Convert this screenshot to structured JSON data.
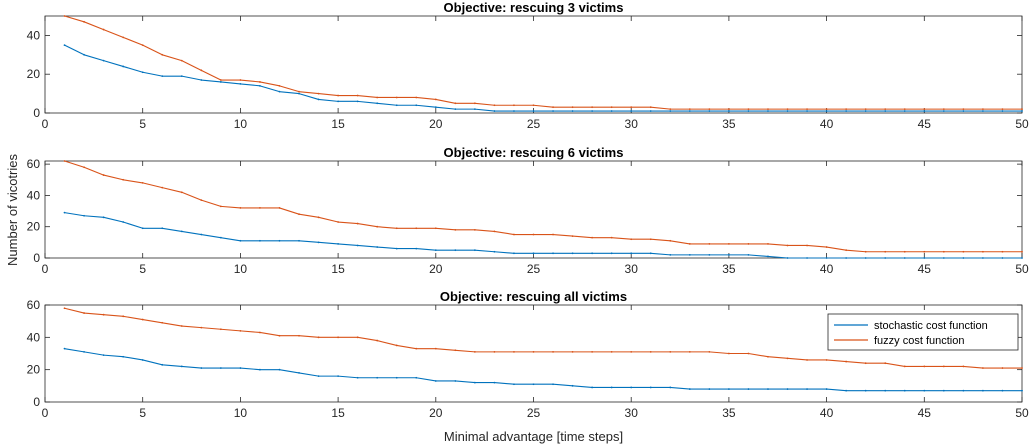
{
  "colors": {
    "stochastic": "#0072BD",
    "fuzzy": "#D95319",
    "axis": "#262626",
    "background": "#ffffff"
  },
  "figure": {
    "ylabel": "Number of vicotries",
    "xlabel": "Minimal advantage [time steps]"
  },
  "chart_data": [
    {
      "type": "line",
      "title": "Objective: rescuing 3 victims",
      "xlim": [
        0,
        50
      ],
      "ylim": [
        0,
        50
      ],
      "xticks": [
        0,
        5,
        10,
        15,
        20,
        25,
        30,
        35,
        40,
        45,
        50
      ],
      "yticks": [
        0,
        20,
        40
      ],
      "grid": false,
      "x": [
        1,
        2,
        3,
        4,
        5,
        6,
        7,
        8,
        9,
        10,
        11,
        12,
        13,
        14,
        15,
        16,
        17,
        18,
        19,
        20,
        21,
        22,
        23,
        24,
        25,
        26,
        27,
        28,
        29,
        30,
        31,
        32,
        33,
        34,
        35,
        36,
        37,
        38,
        39,
        40,
        41,
        42,
        43,
        44,
        45,
        46,
        47,
        48,
        49,
        50
      ],
      "series": [
        {
          "name": "stochastic cost function",
          "color_key": "stochastic",
          "values": [
            35,
            30,
            27,
            24,
            21,
            19,
            19,
            17,
            16,
            15,
            14,
            11,
            10,
            7,
            6,
            6,
            5,
            4,
            4,
            3,
            2,
            2,
            1,
            1,
            1,
            1,
            1,
            1,
            1,
            1,
            1,
            1,
            1,
            1,
            1,
            1,
            1,
            1,
            1,
            1,
            1,
            1,
            1,
            1,
            1,
            1,
            1,
            1,
            1,
            1
          ]
        },
        {
          "name": "fuzzy cost function",
          "color_key": "fuzzy",
          "values": [
            50,
            47,
            43,
            39,
            35,
            30,
            27,
            22,
            17,
            17,
            16,
            14,
            11,
            10,
            9,
            9,
            8,
            8,
            8,
            7,
            5,
            5,
            4,
            4,
            4,
            3,
            3,
            3,
            3,
            3,
            3,
            2,
            2,
            2,
            2,
            2,
            2,
            2,
            2,
            2,
            2,
            2,
            2,
            2,
            2,
            2,
            2,
            2,
            2,
            2
          ]
        }
      ]
    },
    {
      "type": "line",
      "title": "Objective: rescuing 6 victims",
      "xlim": [
        0,
        50
      ],
      "ylim": [
        0,
        62
      ],
      "xticks": [
        0,
        5,
        10,
        15,
        20,
        25,
        30,
        35,
        40,
        45,
        50
      ],
      "yticks": [
        0,
        20,
        40,
        60
      ],
      "grid": false,
      "x": [
        1,
        2,
        3,
        4,
        5,
        6,
        7,
        8,
        9,
        10,
        11,
        12,
        13,
        14,
        15,
        16,
        17,
        18,
        19,
        20,
        21,
        22,
        23,
        24,
        25,
        26,
        27,
        28,
        29,
        30,
        31,
        32,
        33,
        34,
        35,
        36,
        37,
        38,
        39,
        40,
        41,
        42,
        43,
        44,
        45,
        46,
        47,
        48,
        49,
        50
      ],
      "series": [
        {
          "name": "stochastic cost function",
          "color_key": "stochastic",
          "values": [
            29,
            27,
            26,
            23,
            19,
            19,
            17,
            15,
            13,
            11,
            11,
            11,
            11,
            10,
            9,
            8,
            7,
            6,
            6,
            5,
            5,
            5,
            4,
            3,
            3,
            3,
            3,
            3,
            3,
            3,
            3,
            2,
            2,
            2,
            2,
            2,
            1,
            0,
            0,
            0,
            0,
            0,
            0,
            0,
            0,
            0,
            0,
            0,
            0,
            0
          ]
        },
        {
          "name": "fuzzy cost function",
          "color_key": "fuzzy",
          "values": [
            62,
            58,
            53,
            50,
            48,
            45,
            42,
            37,
            33,
            32,
            32,
            32,
            28,
            26,
            23,
            22,
            20,
            19,
            19,
            19,
            18,
            18,
            17,
            15,
            15,
            15,
            14,
            13,
            13,
            12,
            12,
            11,
            9,
            9,
            9,
            9,
            9,
            8,
            8,
            7,
            5,
            4,
            4,
            4,
            4,
            4,
            4,
            4,
            4,
            4
          ]
        }
      ]
    },
    {
      "type": "line",
      "title": "Objective: rescuing all victims",
      "xlim": [
        0,
        50
      ],
      "ylim": [
        0,
        60
      ],
      "xticks": [
        0,
        5,
        10,
        15,
        20,
        25,
        30,
        35,
        40,
        45,
        50
      ],
      "yticks": [
        0,
        20,
        40,
        60
      ],
      "grid": false,
      "legend": "top-right",
      "x": [
        1,
        2,
        3,
        4,
        5,
        6,
        7,
        8,
        9,
        10,
        11,
        12,
        13,
        14,
        15,
        16,
        17,
        18,
        19,
        20,
        21,
        22,
        23,
        24,
        25,
        26,
        27,
        28,
        29,
        30,
        31,
        32,
        33,
        34,
        35,
        36,
        37,
        38,
        39,
        40,
        41,
        42,
        43,
        44,
        45,
        46,
        47,
        48,
        49,
        50
      ],
      "series": [
        {
          "name": "stochastic cost function",
          "color_key": "stochastic",
          "values": [
            33,
            31,
            29,
            28,
            26,
            23,
            22,
            21,
            21,
            21,
            20,
            20,
            18,
            16,
            16,
            15,
            15,
            15,
            15,
            13,
            13,
            12,
            12,
            11,
            11,
            11,
            10,
            9,
            9,
            9,
            9,
            9,
            8,
            8,
            8,
            8,
            8,
            8,
            8,
            8,
            7,
            7,
            7,
            7,
            7,
            7,
            7,
            7,
            7,
            7
          ]
        },
        {
          "name": "fuzzy cost function",
          "color_key": "fuzzy",
          "values": [
            58,
            55,
            54,
            53,
            51,
            49,
            47,
            46,
            45,
            44,
            43,
            41,
            41,
            40,
            40,
            40,
            38,
            35,
            33,
            33,
            32,
            31,
            31,
            31,
            31,
            31,
            31,
            31,
            31,
            31,
            31,
            31,
            31,
            31,
            30,
            30,
            28,
            27,
            26,
            26,
            25,
            24,
            24,
            22,
            22,
            22,
            22,
            21,
            21,
            21
          ]
        }
      ]
    }
  ]
}
